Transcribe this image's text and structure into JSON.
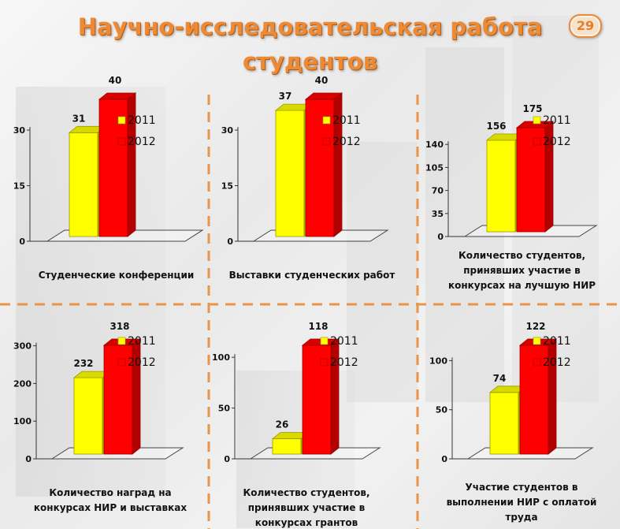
{
  "slide": {
    "title_line1": "Научно-исследовательская работа",
    "title_line2": "студентов",
    "page_number": "29",
    "colors": {
      "title": "#ec8a35",
      "divider": "#e8954b",
      "y2011": "#ffff00",
      "y2012": "#ff0000"
    }
  },
  "chart_data": [
    {
      "type": "bar",
      "title": "Студенческие конференции",
      "categories": [
        ""
      ],
      "series": [
        {
          "name": "2011",
          "values": [
            31
          ]
        },
        {
          "name": "2012",
          "values": [
            40
          ]
        }
      ],
      "yticks": [
        0,
        15,
        30
      ],
      "ylim": [
        0,
        40
      ],
      "legend": "top-right"
    },
    {
      "type": "bar",
      "title": "Выставки студенческих работ",
      "categories": [
        ""
      ],
      "series": [
        {
          "name": "2011",
          "values": [
            37
          ]
        },
        {
          "name": "2012",
          "values": [
            40
          ]
        }
      ],
      "yticks": [
        0,
        15,
        30
      ],
      "ylim": [
        0,
        40
      ],
      "legend": "top-right"
    },
    {
      "type": "bar",
      "title": "Количество студентов, принявших участие в конкурсах на лучшую НИР",
      "categories": [
        ""
      ],
      "series": [
        {
          "name": "2011",
          "values": [
            156
          ]
        },
        {
          "name": "2012",
          "values": [
            175
          ]
        }
      ],
      "yticks": [
        0,
        35,
        70,
        105,
        140
      ],
      "ylim": [
        0,
        175
      ],
      "legend": "top-right"
    },
    {
      "type": "bar",
      "title": "Количество наград на конкурсах НИР и выставках",
      "categories": [
        ""
      ],
      "series": [
        {
          "name": "2011",
          "values": [
            232
          ]
        },
        {
          "name": "2012",
          "values": [
            318
          ]
        }
      ],
      "yticks": [
        0,
        100,
        200,
        300
      ],
      "ylim": [
        0,
        318
      ],
      "legend": "top-right"
    },
    {
      "type": "bar",
      "title": "Количество студентов, принявших участие в конкурсах грантов",
      "categories": [
        ""
      ],
      "series": [
        {
          "name": "2011",
          "values": [
            26
          ]
        },
        {
          "name": "2012",
          "values": [
            118
          ]
        }
      ],
      "yticks": [
        0,
        50,
        100
      ],
      "ylim": [
        0,
        118
      ],
      "legend": "top-right"
    },
    {
      "type": "bar",
      "title": "Участие студентов в выполнении НИР с оплатой труда",
      "categories": [
        ""
      ],
      "series": [
        {
          "name": "2011",
          "values": [
            74
          ]
        },
        {
          "name": "2012",
          "values": [
            122
          ]
        }
      ],
      "yticks": [
        0,
        50,
        100
      ],
      "ylim": [
        0,
        122
      ],
      "legend": "top-right"
    }
  ]
}
